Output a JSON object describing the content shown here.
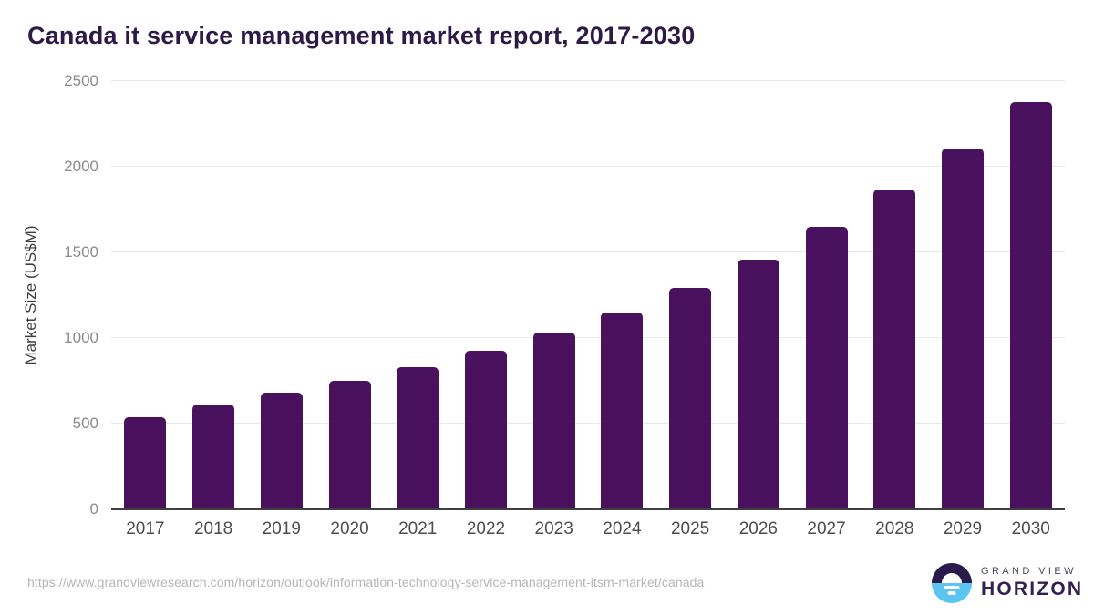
{
  "page": {
    "title": "Canada it service management market report, 2017-2030"
  },
  "chart_data": {
    "type": "bar",
    "title": "Canada it service management market report, 2017-2030",
    "categories": [
      "2017",
      "2018",
      "2019",
      "2020",
      "2021",
      "2022",
      "2023",
      "2024",
      "2025",
      "2026",
      "2027",
      "2028",
      "2029",
      "2030"
    ],
    "values": [
      540,
      610,
      680,
      750,
      832,
      925,
      1030,
      1150,
      1295,
      1460,
      1650,
      1865,
      2105,
      2380
    ],
    "xlabel": "",
    "ylabel": "Market Size (US$M)",
    "ylim": [
      0,
      2500
    ],
    "yticks": [
      0,
      500,
      1000,
      1500,
      2000,
      2500
    ],
    "grid": true,
    "legend": false,
    "bar_color": "#4a115f"
  },
  "footer": {
    "source_url": "https://www.grandviewresearch.com/horizon/outlook/information-technology-service-management-itsm-market/canada",
    "brand": {
      "line1": "GRAND VIEW",
      "line2": "HORIZON"
    }
  },
  "colors": {
    "title_text": "#2e1a47",
    "bar": "#4a115f",
    "gridline": "#e9e9e9",
    "axis_line": "#3f3f3f",
    "tick_text": "#8a8a8a",
    "axis_title_text": "#3d3d3d",
    "xlabel_text": "#4d4d4d",
    "source_text": "#b5b5b5",
    "logo_purple": "#2b1b4d",
    "logo_blue": "#5bc4f1"
  }
}
